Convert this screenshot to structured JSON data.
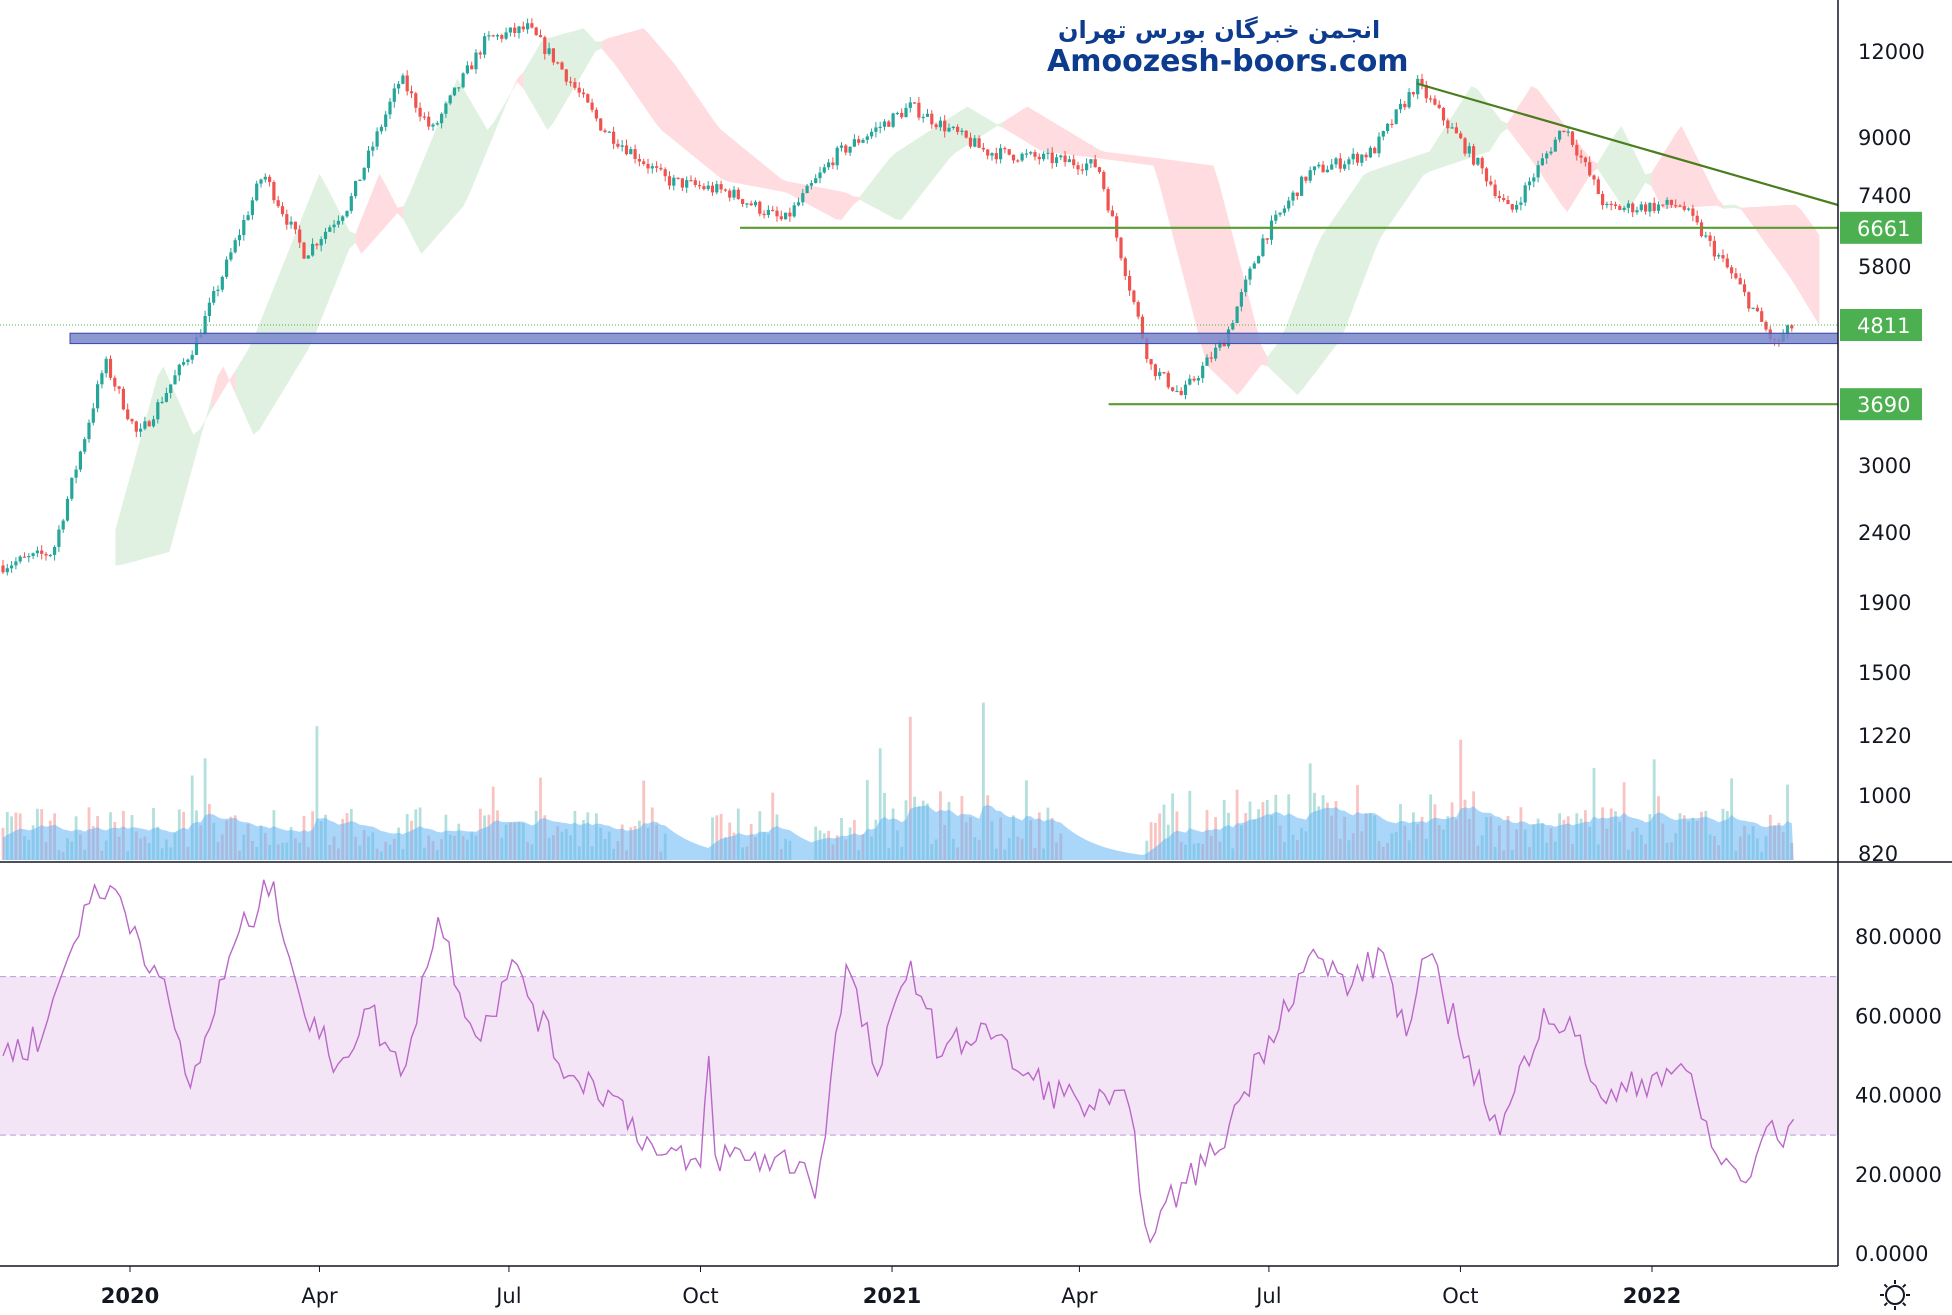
{
  "watermark": {
    "line1": "انجمن خبرگان بورس تهران",
    "line2": "Amoozesh-boors.com"
  },
  "colors": {
    "up": "#26a69a",
    "down": "#ef5350",
    "cloud_bull": "#c8e6c9",
    "cloud_bear": "#ffcdd2",
    "volume_ma": "#64b5f6",
    "rsi_line": "#ba68c8",
    "rsi_band": "#f3e5f5",
    "level_line": "#5b9b32",
    "support_zone": "#7986cb",
    "badge_green": "#4caf50"
  },
  "chart_data": [
    {
      "type": "candlestick",
      "scale": "log",
      "price_axis_ticks": [
        "12000",
        "9000",
        "7400",
        "5800",
        "3000",
        "2400",
        "1900",
        "1500",
        "1220",
        "1000",
        "820"
      ],
      "time_axis_ticks": [
        {
          "label": "2020",
          "bold": true
        },
        {
          "label": "Apr",
          "bold": false
        },
        {
          "label": "Jul",
          "bold": false
        },
        {
          "label": "Oct",
          "bold": false
        },
        {
          "label": "2021",
          "bold": true
        },
        {
          "label": "Apr",
          "bold": false
        },
        {
          "label": "Jul",
          "bold": false
        },
        {
          "label": "Oct",
          "bold": false
        },
        {
          "label": "2022",
          "bold": true
        }
      ],
      "price_labels": [
        {
          "label": "6661",
          "value": 6661
        },
        {
          "label": "4811",
          "value": 4811
        },
        {
          "label": "3690",
          "value": 3690
        }
      ],
      "horizontal_levels": [
        6661,
        3690
      ],
      "support_zone": [
        4520,
        4680
      ],
      "trendline": {
        "from": {
          "date": "2021-09-10",
          "value": 10800
        },
        "to": {
          "date": "2022-04-10",
          "value": 7050
        }
      },
      "close_path": [
        {
          "date": "2019-11-01",
          "value": 2150
        },
        {
          "date": "2019-11-25",
          "value": 2250
        },
        {
          "date": "2019-12-20",
          "value": 4250
        },
        {
          "date": "2020-01-05",
          "value": 3300
        },
        {
          "date": "2020-02-01",
          "value": 4500
        },
        {
          "date": "2020-03-05",
          "value": 8000
        },
        {
          "date": "2020-03-25",
          "value": 6100
        },
        {
          "date": "2020-04-15",
          "value": 7200
        },
        {
          "date": "2020-05-10",
          "value": 11000
        },
        {
          "date": "2020-05-25",
          "value": 9200
        },
        {
          "date": "2020-06-20",
          "value": 12500
        },
        {
          "date": "2020-07-10",
          "value": 13000
        },
        {
          "date": "2020-07-25",
          "value": 11500
        },
        {
          "date": "2020-08-15",
          "value": 9300
        },
        {
          "date": "2020-09-15",
          "value": 7800
        },
        {
          "date": "2020-10-15",
          "value": 7500
        },
        {
          "date": "2020-11-10",
          "value": 6800
        },
        {
          "date": "2020-12-05",
          "value": 8500
        },
        {
          "date": "2021-01-10",
          "value": 10000
        },
        {
          "date": "2021-02-15",
          "value": 8600
        },
        {
          "date": "2021-03-15",
          "value": 8400
        },
        {
          "date": "2021-04-10",
          "value": 8200
        },
        {
          "date": "2021-05-05",
          "value": 4200
        },
        {
          "date": "2021-05-20",
          "value": 3800
        },
        {
          "date": "2021-06-10",
          "value": 4600
        },
        {
          "date": "2021-06-28",
          "value": 6400
        },
        {
          "date": "2021-07-20",
          "value": 8000
        },
        {
          "date": "2021-08-20",
          "value": 8600
        },
        {
          "date": "2021-09-10",
          "value": 10800
        },
        {
          "date": "2021-10-10",
          "value": 8200
        },
        {
          "date": "2021-10-25",
          "value": 7000
        },
        {
          "date": "2021-11-20",
          "value": 9400
        },
        {
          "date": "2021-12-10",
          "value": 7100
        },
        {
          "date": "2022-01-15",
          "value": 7200
        },
        {
          "date": "2022-02-10",
          "value": 5600
        },
        {
          "date": "2022-03-01",
          "value": 4500
        },
        {
          "date": "2022-03-10",
          "value": 4811
        }
      ]
    },
    {
      "type": "area",
      "name": "Volume",
      "note_values": "relative, shown as bars with moving-average area"
    },
    {
      "type": "line",
      "name": "RSI",
      "yticks": [
        "80.0000",
        "60.0000",
        "40.0000",
        "20.0000",
        "0.0000"
      ],
      "band": [
        30,
        70
      ],
      "ylim": [
        0,
        97
      ],
      "points": [
        {
          "date": "2019-11-01",
          "value": 50
        },
        {
          "date": "2019-11-20",
          "value": 55
        },
        {
          "date": "2019-12-10",
          "value": 88
        },
        {
          "date": "2019-12-25",
          "value": 92
        },
        {
          "date": "2020-01-15",
          "value": 70
        },
        {
          "date": "2020-01-30",
          "value": 42
        },
        {
          "date": "2020-02-20",
          "value": 78
        },
        {
          "date": "2020-03-10",
          "value": 94
        },
        {
          "date": "2020-03-25",
          "value": 60
        },
        {
          "date": "2020-04-10",
          "value": 48
        },
        {
          "date": "2020-04-25",
          "value": 62
        },
        {
          "date": "2020-05-10",
          "value": 45
        },
        {
          "date": "2020-05-28",
          "value": 85
        },
        {
          "date": "2020-06-15",
          "value": 55
        },
        {
          "date": "2020-07-05",
          "value": 73
        },
        {
          "date": "2020-07-25",
          "value": 48
        },
        {
          "date": "2020-08-20",
          "value": 40
        },
        {
          "date": "2020-09-10",
          "value": 25
        },
        {
          "date": "2020-10-01",
          "value": 22
        },
        {
          "date": "2020-10-05",
          "value": 50
        },
        {
          "date": "2020-10-08",
          "value": 25
        },
        {
          "date": "2020-11-20",
          "value": 23
        },
        {
          "date": "2020-11-25",
          "value": 14
        },
        {
          "date": "2020-12-10",
          "value": 73
        },
        {
          "date": "2020-12-25",
          "value": 45
        },
        {
          "date": "2021-01-10",
          "value": 74
        },
        {
          "date": "2021-01-25",
          "value": 50
        },
        {
          "date": "2021-02-15",
          "value": 58
        },
        {
          "date": "2021-03-05",
          "value": 45
        },
        {
          "date": "2021-04-01",
          "value": 38
        },
        {
          "date": "2021-04-25",
          "value": 37
        },
        {
          "date": "2021-05-05",
          "value": 3
        },
        {
          "date": "2021-05-20",
          "value": 18
        },
        {
          "date": "2021-06-05",
          "value": 25
        },
        {
          "date": "2021-07-01",
          "value": 55
        },
        {
          "date": "2021-07-20",
          "value": 75
        },
        {
          "date": "2021-08-10",
          "value": 68
        },
        {
          "date": "2021-08-25",
          "value": 76
        },
        {
          "date": "2021-09-05",
          "value": 55
        },
        {
          "date": "2021-09-15",
          "value": 75
        },
        {
          "date": "2021-10-05",
          "value": 50
        },
        {
          "date": "2021-10-20",
          "value": 30
        },
        {
          "date": "2021-11-10",
          "value": 62
        },
        {
          "date": "2021-11-25",
          "value": 55
        },
        {
          "date": "2021-12-10",
          "value": 38
        },
        {
          "date": "2022-01-01",
          "value": 45
        },
        {
          "date": "2022-01-15",
          "value": 48
        },
        {
          "date": "2022-02-01",
          "value": 25
        },
        {
          "date": "2022-02-15",
          "value": 18
        },
        {
          "date": "2022-02-25",
          "value": 32
        },
        {
          "date": "2022-03-05",
          "value": 27
        },
        {
          "date": "2022-03-10",
          "value": 34
        }
      ]
    }
  ]
}
